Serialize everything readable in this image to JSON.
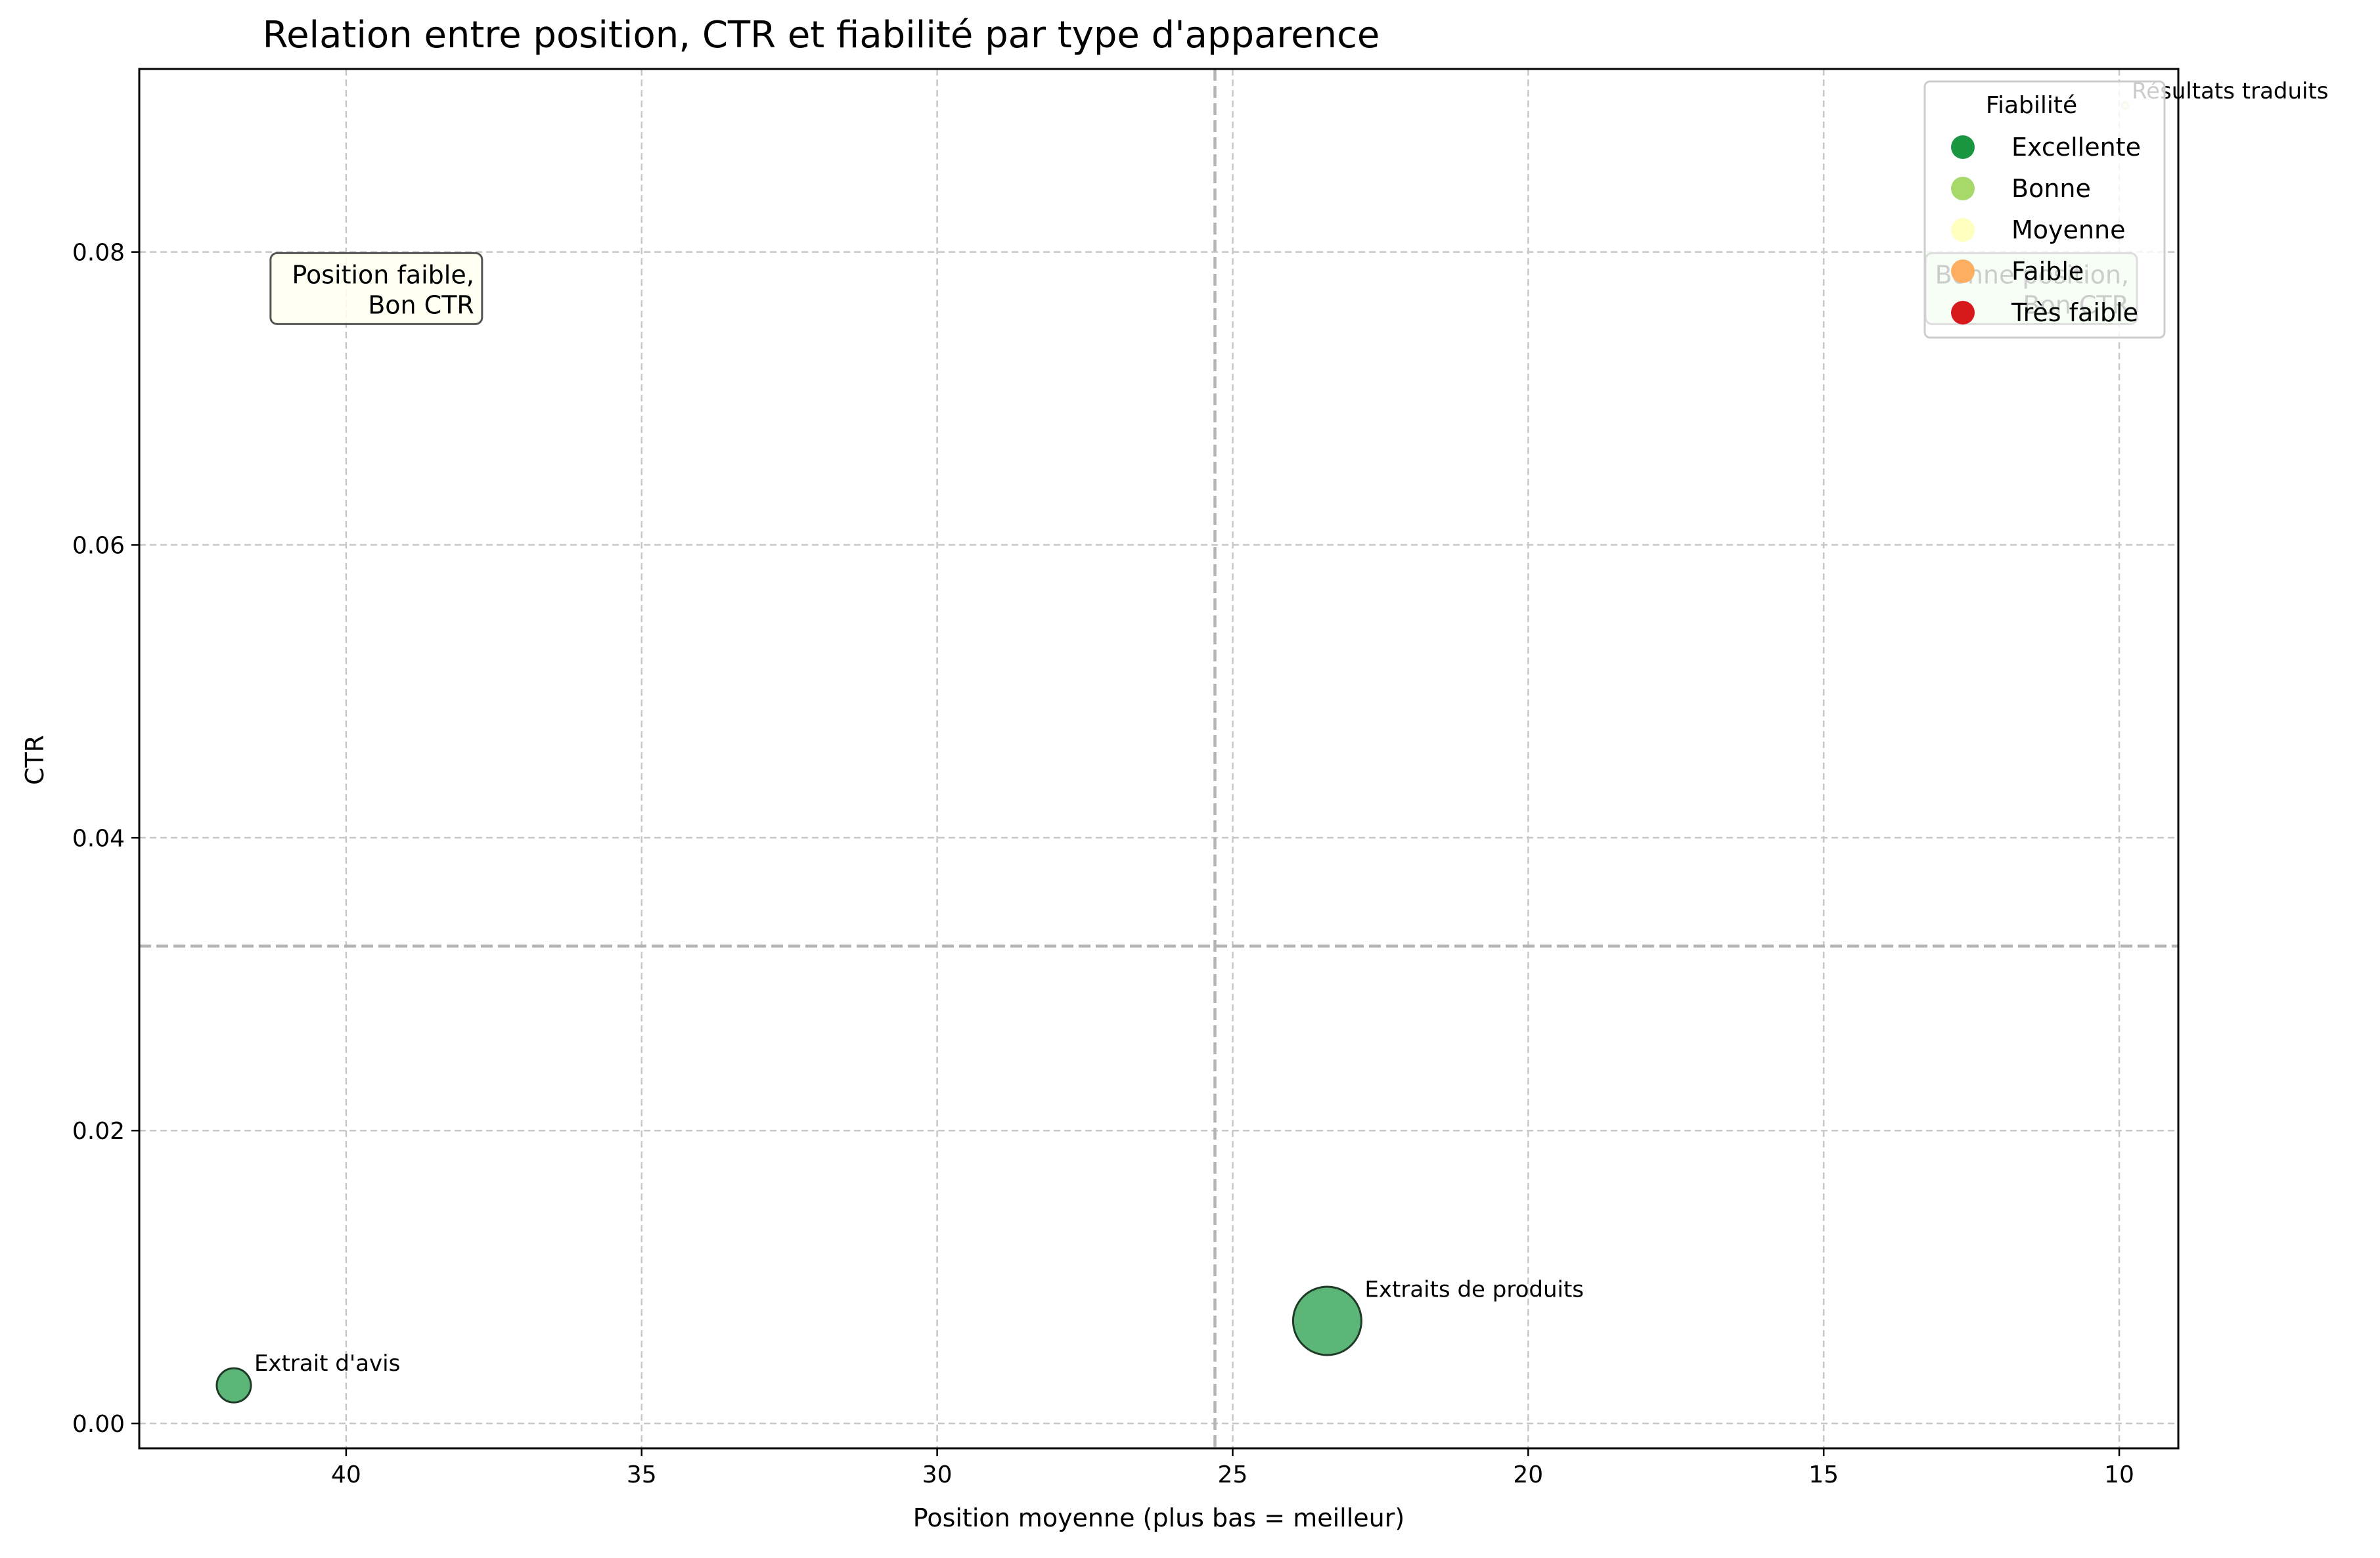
{
  "chart_data": {
    "type": "scatter",
    "title": "Relation entre position, CTR et fiabilité par type d'apparence",
    "xlabel": "Position moyenne (plus bas = meilleur)",
    "ylabel": "CTR",
    "x_inverted": true,
    "xlim": [
      43.5,
      9.0
    ],
    "ylim": [
      -0.0017,
      0.0925
    ],
    "xticks": [
      40,
      35,
      30,
      25,
      20,
      15,
      10
    ],
    "xtick_labels": [
      "40",
      "35",
      "30",
      "25",
      "20",
      "15",
      "10"
    ],
    "yticks": [
      0.0,
      0.02,
      0.04,
      0.06,
      0.08
    ],
    "ytick_labels": [
      "0.00",
      "0.02",
      "0.04",
      "0.06",
      "0.08"
    ],
    "grid": true,
    "reference_lines": {
      "x": 25.3,
      "y": 0.0326
    },
    "points": [
      {
        "label": "Extrait d'avis",
        "x": 41.9,
        "y": 0.0026,
        "size": "small",
        "fiabilite": "Excellente"
      },
      {
        "label": "Extraits de produits",
        "x": 23.4,
        "y": 0.007,
        "size": "large",
        "fiabilite": "Excellente"
      },
      {
        "label": "Résultats traduits",
        "x": 9.9,
        "y": 0.09,
        "size": "tiny",
        "fiabilite": "Moyenne"
      }
    ],
    "annotations": [
      {
        "line1": "Position faible,",
        "line2": "Bon CTR",
        "x": 37.7,
        "y": 0.0775,
        "background": "#fffff0"
      },
      {
        "line1": "Bonne position,",
        "line2": "Bon CTR",
        "x": 9.7,
        "y": 0.0775,
        "background": "#c8f7c8"
      }
    ],
    "legend": {
      "title": "Fiabilité",
      "placement": "top-right",
      "entries": [
        {
          "label": "Excellente",
          "color": "#1a9641"
        },
        {
          "label": "Bonne",
          "color": "#a6d96a"
        },
        {
          "label": "Moyenne",
          "color": "#ffffbf"
        },
        {
          "label": "Faible",
          "color": "#fdae61"
        },
        {
          "label": "Très faible",
          "color": "#d7191c"
        }
      ]
    },
    "colors": {
      "point_fill": "#5bb677",
      "point_edge": "#1f3b28",
      "grid": "#c8c8c8",
      "reference_line": "#b4b4b4"
    }
  }
}
